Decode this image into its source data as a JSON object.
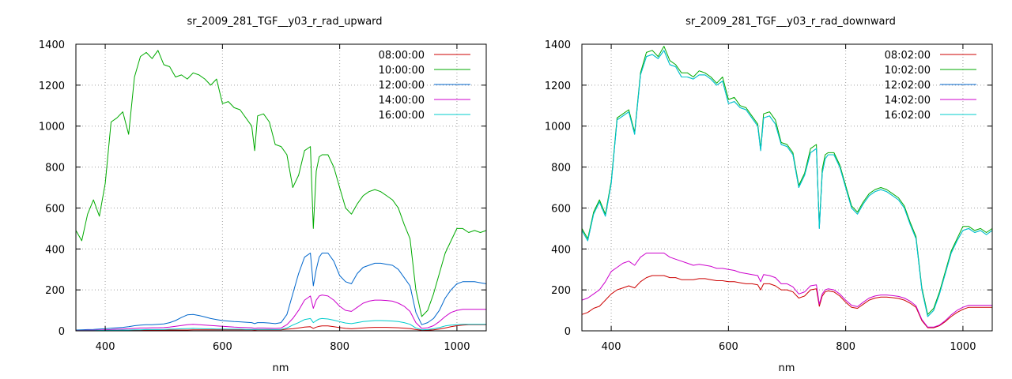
{
  "chart_data": [
    {
      "type": "line",
      "title": "sr_2009_281_TGF__y03_r_rad_upward",
      "xlabel": "nm",
      "ylabel": "",
      "xlim": [
        350,
        1050
      ],
      "ylim": [
        0,
        1400
      ],
      "xticks": [
        400,
        600,
        800,
        1000
      ],
      "yticks": [
        0,
        200,
        400,
        600,
        800,
        1000,
        1200,
        1400
      ],
      "grid": true,
      "legend_position": "top-right",
      "x": [
        350,
        360,
        370,
        380,
        390,
        400,
        410,
        420,
        430,
        440,
        450,
        460,
        470,
        480,
        490,
        500,
        510,
        520,
        530,
        540,
        550,
        560,
        570,
        580,
        590,
        600,
        610,
        620,
        630,
        640,
        650,
        655,
        660,
        670,
        680,
        690,
        700,
        710,
        720,
        730,
        740,
        750,
        755,
        760,
        765,
        770,
        780,
        790,
        800,
        810,
        820,
        830,
        840,
        850,
        860,
        870,
        880,
        890,
        900,
        910,
        920,
        930,
        940,
        950,
        960,
        970,
        980,
        990,
        1000,
        1010,
        1020,
        1030,
        1040,
        1050
      ],
      "series": [
        {
          "name": "08:00:00",
          "color": "#cc0000",
          "values": [
            1,
            1,
            1,
            1,
            1,
            1,
            2,
            2,
            2,
            2,
            3,
            3,
            3,
            3,
            3,
            3,
            4,
            4,
            4,
            4,
            5,
            5,
            5,
            5,
            5,
            5,
            5,
            5,
            5,
            5,
            5,
            4,
            5,
            5,
            5,
            5,
            5,
            8,
            10,
            14,
            18,
            20,
            12,
            18,
            22,
            24,
            24,
            20,
            16,
            12,
            10,
            12,
            14,
            16,
            17,
            17,
            17,
            16,
            15,
            13,
            11,
            6,
            3,
            3,
            5,
            9,
            14,
            20,
            25,
            28,
            30,
            30,
            30,
            30
          ]
        },
        {
          "name": "10:00:00",
          "color": "#00aa00",
          "values": [
            490,
            440,
            570,
            640,
            560,
            720,
            1020,
            1040,
            1070,
            960,
            1240,
            1340,
            1360,
            1330,
            1370,
            1300,
            1290,
            1240,
            1250,
            1230,
            1260,
            1250,
            1230,
            1200,
            1230,
            1110,
            1120,
            1090,
            1080,
            1040,
            1000,
            880,
            1050,
            1060,
            1020,
            910,
            900,
            860,
            700,
            760,
            880,
            900,
            500,
            780,
            850,
            860,
            860,
            800,
            700,
            600,
            570,
            620,
            660,
            680,
            690,
            680,
            660,
            640,
            600,
            520,
            450,
            200,
            70,
            100,
            180,
            280,
            380,
            440,
            500,
            500,
            480,
            490,
            480,
            490
          ]
        },
        {
          "name": "12:00:00",
          "color": "#0066cc",
          "values": [
            4,
            5,
            6,
            7,
            9,
            10,
            13,
            15,
            17,
            20,
            25,
            28,
            30,
            30,
            32,
            34,
            40,
            50,
            65,
            78,
            80,
            75,
            68,
            60,
            55,
            50,
            48,
            45,
            44,
            42,
            40,
            35,
            40,
            40,
            38,
            35,
            40,
            80,
            180,
            280,
            360,
            380,
            220,
            300,
            360,
            380,
            380,
            340,
            270,
            240,
            230,
            280,
            310,
            320,
            330,
            330,
            325,
            320,
            300,
            260,
            220,
            90,
            30,
            40,
            60,
            100,
            160,
            200,
            230,
            240,
            240,
            240,
            235,
            230
          ]
        },
        {
          "name": "14:00:00",
          "color": "#cc00cc",
          "values": [
            2,
            2,
            3,
            3,
            4,
            5,
            6,
            8,
            9,
            10,
            12,
            14,
            14,
            15,
            15,
            16,
            18,
            22,
            26,
            30,
            32,
            30,
            28,
            26,
            24,
            22,
            20,
            18,
            17,
            16,
            15,
            12,
            14,
            14,
            13,
            12,
            14,
            30,
            60,
            100,
            150,
            170,
            110,
            150,
            170,
            175,
            170,
            150,
            120,
            100,
            95,
            115,
            135,
            145,
            150,
            150,
            148,
            145,
            135,
            120,
            95,
            40,
            12,
            15,
            25,
            45,
            70,
            90,
            100,
            105,
            105,
            105,
            105,
            105
          ]
        },
        {
          "name": "16:00:00",
          "color": "#00cccc",
          "values": [
            1,
            1,
            1,
            1,
            2,
            2,
            3,
            3,
            4,
            4,
            5,
            5,
            6,
            6,
            6,
            7,
            8,
            9,
            10,
            11,
            12,
            11,
            10,
            10,
            9,
            9,
            8,
            8,
            8,
            7,
            7,
            6,
            7,
            7,
            7,
            6,
            7,
            14,
            28,
            40,
            55,
            60,
            40,
            50,
            58,
            60,
            58,
            52,
            45,
            38,
            35,
            40,
            45,
            48,
            50,
            50,
            49,
            48,
            45,
            40,
            32,
            14,
            5,
            6,
            10,
            16,
            24,
            28,
            30,
            32,
            32,
            32,
            32,
            32
          ]
        }
      ]
    },
    {
      "type": "line",
      "title": "sr_2009_281_TGF__y03_r_rad_downward",
      "xlabel": "nm",
      "ylabel": "",
      "xlim": [
        350,
        1050
      ],
      "ylim": [
        0,
        1400
      ],
      "xticks": [
        400,
        600,
        800,
        1000
      ],
      "yticks": [
        0,
        200,
        400,
        600,
        800,
        1000,
        1200,
        1400
      ],
      "grid": true,
      "legend_position": "top-right",
      "x": [
        350,
        360,
        370,
        380,
        390,
        400,
        410,
        420,
        430,
        440,
        450,
        460,
        470,
        480,
        490,
        500,
        510,
        520,
        530,
        540,
        550,
        560,
        570,
        580,
        590,
        600,
        610,
        620,
        630,
        640,
        650,
        655,
        660,
        670,
        680,
        690,
        700,
        710,
        720,
        730,
        740,
        750,
        755,
        760,
        765,
        770,
        780,
        790,
        800,
        810,
        820,
        830,
        840,
        850,
        860,
        870,
        880,
        890,
        900,
        910,
        920,
        930,
        940,
        950,
        960,
        970,
        980,
        990,
        1000,
        1010,
        1020,
        1030,
        1040,
        1050
      ],
      "series": [
        {
          "name": "08:02:00",
          "color": "#cc0000",
          "values": [
            80,
            90,
            110,
            120,
            150,
            180,
            200,
            210,
            220,
            210,
            240,
            260,
            270,
            270,
            270,
            260,
            260,
            250,
            250,
            250,
            255,
            255,
            250,
            245,
            245,
            240,
            240,
            235,
            230,
            230,
            225,
            200,
            230,
            230,
            220,
            200,
            200,
            190,
            160,
            170,
            200,
            205,
            120,
            170,
            190,
            195,
            190,
            170,
            140,
            115,
            110,
            130,
            150,
            160,
            165,
            165,
            162,
            158,
            150,
            135,
            115,
            50,
            15,
            15,
            25,
            45,
            70,
            90,
            105,
            115,
            115,
            115,
            115,
            115
          ]
        },
        {
          "name": "10:02:00",
          "color": "#00aa00",
          "values": [
            500,
            450,
            580,
            640,
            570,
            730,
            1040,
            1060,
            1080,
            970,
            1260,
            1360,
            1370,
            1340,
            1390,
            1320,
            1300,
            1260,
            1260,
            1240,
            1270,
            1260,
            1240,
            1210,
            1240,
            1130,
            1140,
            1100,
            1090,
            1050,
            1010,
            890,
            1060,
            1070,
            1030,
            920,
            910,
            870,
            710,
            770,
            890,
            910,
            510,
            790,
            860,
            870,
            870,
            810,
            710,
            610,
            580,
            630,
            670,
            690,
            700,
            690,
            670,
            650,
            610,
            530,
            460,
            210,
            80,
            110,
            190,
            290,
            390,
            450,
            510,
            510,
            490,
            500,
            480,
            500
          ]
        },
        {
          "name": "12:02:00",
          "color": "#0066cc",
          "values": [
            490,
            440,
            570,
            630,
            560,
            720,
            1030,
            1050,
            1070,
            960,
            1250,
            1340,
            1350,
            1330,
            1370,
            1300,
            1290,
            1240,
            1240,
            1230,
            1250,
            1250,
            1230,
            1200,
            1220,
            1110,
            1120,
            1090,
            1080,
            1040,
            1000,
            880,
            1040,
            1050,
            1010,
            910,
            900,
            860,
            700,
            760,
            870,
            890,
            500,
            770,
            840,
            860,
            860,
            800,
            700,
            600,
            570,
            620,
            660,
            680,
            690,
            680,
            660,
            640,
            600,
            520,
            450,
            200,
            70,
            100,
            180,
            280,
            380,
            440,
            490,
            500,
            480,
            490,
            470,
            490
          ]
        },
        {
          "name": "14:02:00",
          "color": "#cc00cc",
          "values": [
            150,
            160,
            180,
            200,
            240,
            290,
            310,
            330,
            340,
            320,
            360,
            380,
            380,
            380,
            380,
            360,
            350,
            340,
            330,
            320,
            325,
            320,
            315,
            305,
            305,
            300,
            295,
            285,
            280,
            275,
            270,
            240,
            275,
            270,
            260,
            230,
            230,
            215,
            180,
            190,
            220,
            225,
            130,
            180,
            200,
            205,
            200,
            180,
            150,
            125,
            118,
            140,
            160,
            170,
            175,
            175,
            172,
            168,
            160,
            145,
            122,
            55,
            18,
            18,
            28,
            50,
            78,
            100,
            115,
            125,
            125,
            125,
            125,
            125
          ]
        },
        {
          "name": "16:02:00",
          "color": "#00cccc",
          "values": [
            490,
            440,
            570,
            630,
            560,
            720,
            1030,
            1050,
            1070,
            960,
            1250,
            1340,
            1350,
            1330,
            1370,
            1300,
            1290,
            1240,
            1240,
            1230,
            1250,
            1250,
            1230,
            1200,
            1220,
            1110,
            1120,
            1090,
            1080,
            1040,
            1000,
            880,
            1040,
            1050,
            1010,
            910,
            900,
            860,
            700,
            760,
            870,
            890,
            500,
            770,
            840,
            860,
            860,
            800,
            700,
            600,
            570,
            620,
            660,
            680,
            690,
            680,
            660,
            640,
            600,
            520,
            450,
            200,
            70,
            100,
            180,
            280,
            380,
            440,
            490,
            500,
            480,
            490,
            470,
            490
          ]
        }
      ]
    }
  ]
}
